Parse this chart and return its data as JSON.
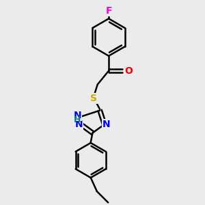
{
  "bg_color": "#ebebeb",
  "bond_color": "#000000",
  "bond_width": 1.8,
  "atom_colors": {
    "F": "#ff00dd",
    "O": "#ff0000",
    "S": "#ccaa00",
    "N": "#0000ff",
    "H": "#008080",
    "C": "#000000"
  },
  "font_size": 10,
  "fig_size": [
    3.0,
    3.0
  ],
  "dpi": 100
}
